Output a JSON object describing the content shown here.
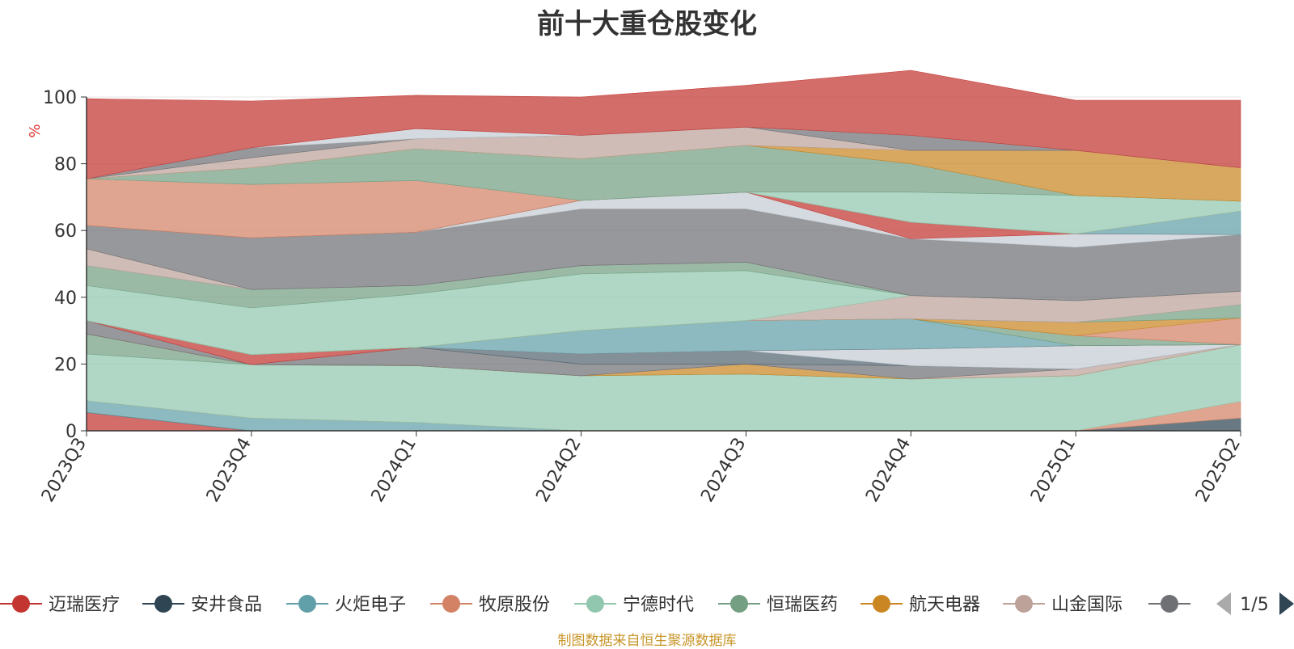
{
  "chart_data": {
    "type": "area",
    "stacked": true,
    "title": "前十大重仓股变化",
    "ylabel": "%",
    "ylim": [
      0,
      100
    ],
    "yticks": [
      0,
      20,
      40,
      60,
      80,
      100
    ],
    "categories": [
      "2023Q3",
      "2023Q4",
      "2024Q1",
      "2024Q2",
      "2024Q3",
      "2024Q4",
      "2025Q1",
      "2025Q2"
    ],
    "grid": true,
    "legend_position": "bottom",
    "legend_pager": "1/5",
    "series": [
      {
        "name": "迈瑞医疗",
        "color": "#c23531",
        "values": [
          5.5,
          0,
          0,
          0,
          0,
          0,
          0,
          0
        ]
      },
      {
        "name": "安井食品",
        "color": "#2f4554",
        "values": [
          0,
          0,
          0,
          0,
          0,
          0,
          0,
          3.8
        ]
      },
      {
        "name": "火炬电子",
        "color": "#61a0a8",
        "values": [
          3.5,
          3.8,
          2.5,
          0,
          0,
          0,
          0,
          0
        ]
      },
      {
        "name": "牧原股份",
        "color": "#d48265",
        "values": [
          0,
          0,
          0,
          0,
          0,
          0,
          0,
          5
        ]
      },
      {
        "name": "宁德时代",
        "color": "#91c7ae",
        "values": [
          14,
          16,
          17,
          16.5,
          17,
          15.5,
          16.5,
          17
        ]
      },
      {
        "name": "恒瑞医药",
        "color": "#749f83",
        "values": [
          6,
          0,
          0,
          0,
          0,
          0,
          0,
          0
        ]
      },
      {
        "name": "航天电器",
        "color": "#ca8622",
        "values": [
          0,
          0,
          0,
          0,
          3,
          0,
          0,
          0
        ]
      },
      {
        "name": "山金国际",
        "color": "#bda29a",
        "values": [
          0,
          0,
          0,
          0,
          0,
          0,
          2,
          0
        ]
      },
      {
        "values": [
          4,
          0,
          5.5,
          3.5,
          0,
          4,
          0,
          0
        ],
        "color": "#6e7074"
      },
      {
        "values": [
          0,
          0,
          0,
          3,
          4,
          0,
          0,
          0
        ],
        "color": "#546570"
      },
      {
        "values": [
          0,
          0,
          0,
          0,
          0,
          5,
          7,
          0
        ],
        "color": "#c4ccd3"
      },
      {
        "values": [
          0,
          3,
          0,
          0,
          0,
          0,
          0,
          0
        ],
        "color": "#c23531"
      },
      {
        "values": [
          0,
          0,
          0,
          7,
          9,
          9,
          0,
          0
        ],
        "color": "#61a0a8"
      },
      {
        "values": [
          0,
          0,
          0,
          0,
          0,
          0,
          3,
          0
        ],
        "color": "#749f83"
      },
      {
        "values": [
          0,
          0,
          0,
          0,
          0,
          0,
          0,
          8
        ],
        "color": "#d48265"
      },
      {
        "values": [
          0,
          0,
          0,
          0,
          0,
          0,
          4,
          0
        ],
        "color": "#ca8622"
      },
      {
        "values": [
          0,
          0,
          0,
          0,
          0,
          0,
          0,
          4
        ],
        "color": "#749f83"
      },
      {
        "values": [
          0,
          0,
          0,
          0,
          0,
          7,
          6.5,
          4
        ],
        "color": "#bda29a"
      },
      {
        "values": [
          10.5,
          14,
          16,
          17,
          15,
          0,
          0,
          0
        ],
        "color": "#91c7ae"
      },
      {
        "values": [
          6,
          5.5,
          2.5,
          2.5,
          2.5,
          0,
          0,
          0
        ],
        "color": "#749f83"
      },
      {
        "values": [
          5,
          0,
          0,
          0,
          0,
          0,
          0,
          0
        ],
        "color": "#bda29a"
      },
      {
        "values": [
          7,
          15.5,
          16,
          17,
          16,
          17,
          16,
          17
        ],
        "color": "#6e7074"
      },
      {
        "values": [
          0,
          0,
          0,
          2.5,
          5,
          0,
          4,
          0
        ],
        "color": "#c4ccd3"
      },
      {
        "values": [
          0,
          0,
          0,
          0,
          0,
          5,
          0,
          0
        ],
        "color": "#c23531"
      },
      {
        "values": [
          0,
          0,
          0,
          0,
          0,
          0,
          0,
          7
        ],
        "color": "#61a0a8"
      },
      {
        "values": [
          14,
          16,
          15.5,
          0,
          0,
          0,
          0,
          0
        ],
        "color": "#d48265"
      },
      {
        "values": [
          0,
          0,
          0,
          0,
          0,
          9,
          11.5,
          3
        ],
        "color": "#91c7ae"
      },
      {
        "values": [
          0,
          5,
          9.5,
          12.5,
          14,
          8.5,
          0,
          0
        ],
        "color": "#749f83"
      },
      {
        "values": [
          0,
          0,
          0,
          0,
          0,
          4,
          13.5,
          10
        ],
        "color": "#ca8622"
      },
      {
        "values": [
          0,
          3,
          3,
          7,
          5.5,
          0,
          0,
          0
        ],
        "color": "#bda29a"
      },
      {
        "values": [
          0,
          3,
          0,
          0,
          0,
          4.5,
          0,
          0
        ],
        "color": "#6e7074"
      },
      {
        "values": [
          0,
          0,
          3,
          0,
          0,
          0,
          0,
          0
        ],
        "color": "#c4ccd3"
      },
      {
        "values": [
          24,
          14,
          10,
          11.5,
          12.5,
          19.5,
          15,
          20.2
        ],
        "color": "#c23531"
      }
    ]
  },
  "source_note": "制图数据来自恒生聚源数据库"
}
